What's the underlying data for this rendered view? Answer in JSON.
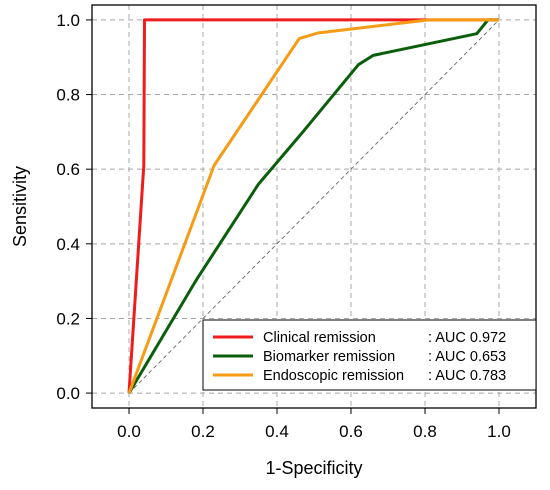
{
  "chart_data": {
    "type": "line",
    "title": "",
    "xlabel": "1-Specificity",
    "ylabel": "Sensitivity",
    "xlim": [
      -0.1,
      1.1
    ],
    "ylim": [
      -0.04,
      1.04
    ],
    "x_ticks": [
      "0.0",
      "0.2",
      "0.4",
      "0.6",
      "0.8",
      "1.0"
    ],
    "y_ticks": [
      "0.0",
      "0.2",
      "0.4",
      "0.6",
      "0.8",
      "1.0"
    ],
    "grid": true,
    "reference_line": true,
    "legend_position": "bottom-right",
    "series": [
      {
        "name": "Clinical remission",
        "auc_label": ": AUC 0.972",
        "color": "#ee1c1c",
        "points": [
          [
            0,
            0
          ],
          [
            0.04,
            0.61
          ],
          [
            0.042,
            1.0
          ],
          [
            0.86,
            1.0
          ],
          [
            1.0,
            1.0
          ]
        ]
      },
      {
        "name": "Biomarker remission",
        "auc_label": ": AUC 0.653",
        "color": "#0b5e0b",
        "points": [
          [
            0,
            0
          ],
          [
            0.18,
            0.3
          ],
          [
            0.35,
            0.56
          ],
          [
            0.47,
            0.7
          ],
          [
            0.62,
            0.88
          ],
          [
            0.66,
            0.905
          ],
          [
            0.94,
            0.963
          ],
          [
            0.97,
            1.0
          ],
          [
            1.0,
            1.0
          ]
        ]
      },
      {
        "name": "Endoscopic remission",
        "auc_label": ": AUC 0.783",
        "color": "#f59b16",
        "points": [
          [
            0,
            0
          ],
          [
            0.23,
            0.61
          ],
          [
            0.46,
            0.95
          ],
          [
            0.51,
            0.965
          ],
          [
            0.81,
            1.0
          ],
          [
            1.0,
            1.0
          ]
        ]
      }
    ]
  }
}
